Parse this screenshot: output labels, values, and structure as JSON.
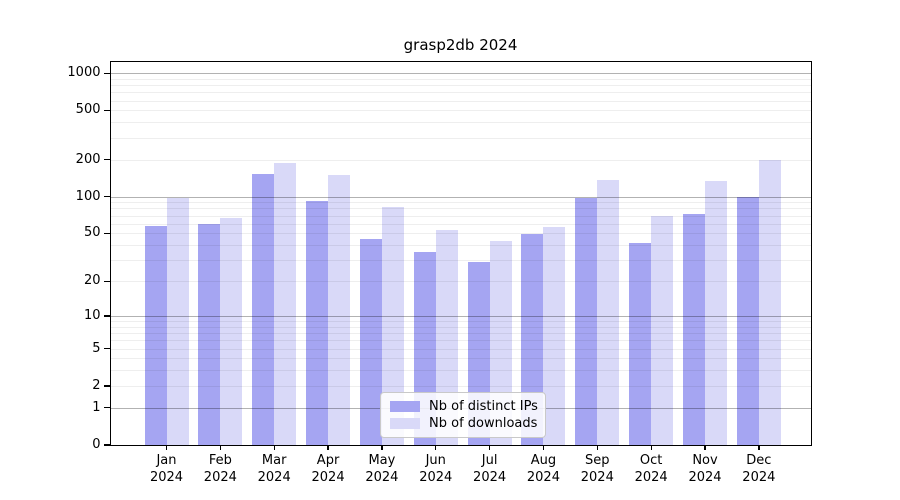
{
  "chart_data": {
    "type": "bar",
    "title": "grasp2db 2024",
    "categories": [
      "Jan 2024",
      "Feb 2024",
      "Mar 2024",
      "Apr 2024",
      "May 2024",
      "Jun 2024",
      "Jul 2024",
      "Aug 2024",
      "Sep 2024",
      "Oct 2024",
      "Nov 2024",
      "Dec 2024"
    ],
    "series": [
      {
        "name": "Nb of distinct IPs",
        "color": "#a5a5f2",
        "values": [
          57,
          60,
          152,
          92,
          45,
          35,
          29,
          49,
          97,
          42,
          72,
          100
        ]
      },
      {
        "name": "Nb of downloads",
        "color": "#d9d9f8",
        "values": [
          97,
          67,
          189,
          150,
          83,
          53,
          43,
          56,
          137,
          70,
          135,
          200
        ]
      }
    ],
    "xlabel": "",
    "ylabel": "",
    "yscale": "log1p",
    "y_ticks": [
      0,
      1,
      2,
      5,
      10,
      20,
      50,
      100,
      200,
      500,
      1000
    ],
    "major_gridlines": [
      1,
      10,
      100,
      1000
    ],
    "minor_gridlines": [
      2,
      3,
      4,
      5,
      6,
      7,
      8,
      9,
      20,
      30,
      40,
      50,
      60,
      70,
      80,
      90,
      200,
      300,
      400,
      500,
      600,
      700,
      800,
      900
    ],
    "ylim": [
      0,
      1230
    ],
    "grid": true,
    "legend_position": "lower center"
  }
}
